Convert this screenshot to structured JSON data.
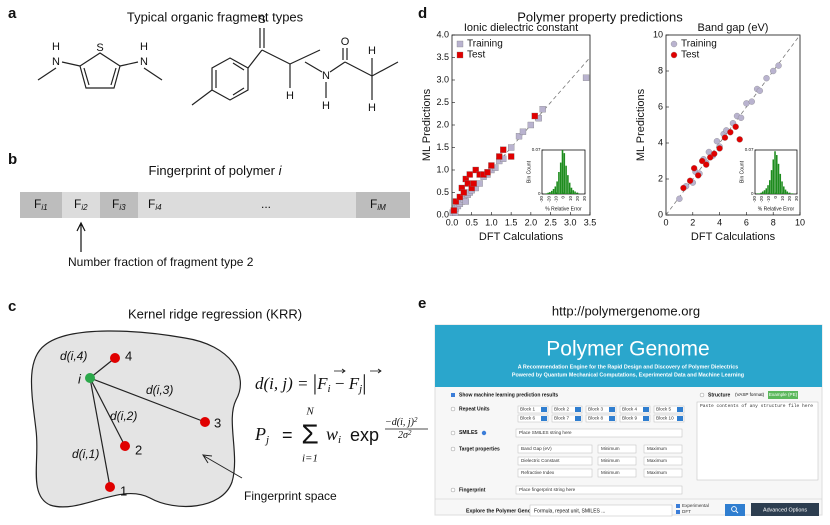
{
  "figure": {
    "a": {
      "label": "a",
      "title": "Typical organic fragment types",
      "atoms": [
        "H",
        "N",
        "S",
        "H",
        "N",
        "S",
        "H",
        "O",
        "N",
        "H",
        "H",
        "H"
      ]
    },
    "b": {
      "label": "b",
      "title": "Fingerprint of polymer ",
      "title_var": "i",
      "cells": [
        {
          "main": "F",
          "sub": "i1"
        },
        {
          "main": "F",
          "sub": "i2"
        },
        {
          "main": "F",
          "sub": "i3"
        },
        {
          "main": "F",
          "sub": "i4"
        },
        {
          "main": "..."
        },
        {
          "main": "F",
          "sub": "iM"
        }
      ],
      "annotation": "Number fraction of fragment type 2"
    },
    "c": {
      "label": "c",
      "title": "Kernel ridge regression (KRR)",
      "node_labels": [
        "i",
        "1",
        "2",
        "3",
        "4"
      ],
      "edge_labels": [
        "d(i,1)",
        "d(i,2)",
        "d(i,3)",
        "d(i,4)"
      ],
      "annotation": "Fingerprint space",
      "eq1": [
        "d(i, j) = ",
        "|",
        "F",
        "i",
        " − ",
        "F",
        "j",
        "|"
      ],
      "eq2": {
        "lhs": "P",
        "lhs_sub": "j",
        "eq": "=",
        "sum_top": "N",
        "sum": "Σ",
        "sum_bottom": "i=1",
        "w": "w",
        "w_sub": "i",
        "exp": "exp",
        "num": "−d(i, j)",
        "num_sup": "2",
        "den": "2σ",
        "den_sup": "2"
      }
    },
    "d": {
      "label": "d",
      "title": "Polymer property predictions"
    },
    "e": {
      "label": "e",
      "url": "http://polymergenome.org",
      "site_title": "Polymer Genome",
      "tagline1": "A Recommendation Engine for the Rapid Design and Discovery of Polymer Dielectrics",
      "tagline2": "Powered by Quantum Mechanical Computations, Experimental Data and Machine Learning",
      "checkbox": "Show machine learning prediction results",
      "repeat_units": "Repeat Units",
      "blocks": [
        "Block 1",
        "Block 2",
        "Block 3",
        "Block 4",
        "Block 5",
        "Block 6",
        "Block 7",
        "Block 8",
        "Block 9",
        "Block 10"
      ],
      "smiles": "SMILES",
      "smiles_placeholder": "Place SMILES string here",
      "targets_label": "Target properties",
      "targets": [
        "Band Gap (eV)",
        "Dielectric Constant",
        "Refractive Index"
      ],
      "min": "Minimum",
      "max": "Maximum",
      "fingerprint": "Fingerprint",
      "fingerprint_placeholder": "Place fingerprint string here",
      "structure": "Structure",
      "structure_note": "(VASP format)",
      "example": "Example (PE)",
      "structure_placeholder": "Paste contents of any structure file here",
      "explore": "Explore the Polymer Genome",
      "search_placeholder": "Formula, repeat unit, SMILES ...",
      "sources": [
        "Experimental",
        "DFT"
      ],
      "advanced": "Advanced Options"
    }
  },
  "chart_data": [
    {
      "type": "scatter",
      "title": "Ionic dielectric constant",
      "xlabel": "DFT Calculations",
      "ylabel": "ML Predictions",
      "xlim": [
        0,
        3.5
      ],
      "ylim": [
        0,
        4
      ],
      "xticks": [
        {
          "value": 0,
          "label": "0.0"
        },
        {
          "value": 0.5,
          "label": "0.5"
        },
        {
          "value": 1,
          "label": "1.0"
        },
        {
          "value": 1.5,
          "label": "1.5"
        },
        {
          "value": 2,
          "label": "2.0"
        },
        {
          "value": 2.5,
          "label": "2.5"
        },
        {
          "value": 3,
          "label": "3.0"
        },
        {
          "value": 3.5,
          "label": "3.5"
        }
      ],
      "yticks": [
        {
          "value": 0,
          "label": "0.0"
        },
        {
          "value": 0.5,
          "label": "0.5"
        },
        {
          "value": 1,
          "label": "1.0"
        },
        {
          "value": 1.5,
          "label": "1.5"
        },
        {
          "value": 2,
          "label": "2.0"
        },
        {
          "value": 2.5,
          "label": "2.5"
        },
        {
          "value": 3,
          "label": "3.0"
        },
        {
          "value": 3.5,
          "label": "3.5"
        },
        {
          "value": 4,
          "label": "4.0"
        }
      ],
      "diagonal": true,
      "legend": "upper left",
      "series": [
        {
          "name": "Training",
          "color": "#b9b3cf",
          "marker": "square",
          "x": [
            0.02,
            0.05,
            0.08,
            0.1,
            0.15,
            0.2,
            0.25,
            0.3,
            0.35,
            0.4,
            0.45,
            0.5,
            0.6,
            0.7,
            0.8,
            0.9,
            1.0,
            1.1,
            1.2,
            1.3,
            1.5,
            1.7,
            1.8,
            2.0,
            2.2,
            2.3,
            3.4
          ],
          "values": [
            0.05,
            0.1,
            0.05,
            0.15,
            0.2,
            0.25,
            0.3,
            0.35,
            0.3,
            0.45,
            0.5,
            0.55,
            0.6,
            0.7,
            0.85,
            0.9,
            1.0,
            1.05,
            1.2,
            1.25,
            1.5,
            1.75,
            1.85,
            2.0,
            2.15,
            2.35,
            3.05
          ]
        },
        {
          "name": "Test",
          "color": "#e00000",
          "marker": "square",
          "x": [
            0.05,
            0.1,
            0.2,
            0.25,
            0.3,
            0.35,
            0.4,
            0.45,
            0.5,
            0.55,
            0.6,
            0.7,
            0.8,
            0.9,
            1.0,
            1.2,
            1.3,
            1.5,
            2.1
          ],
          "values": [
            0.1,
            0.3,
            0.4,
            0.6,
            0.5,
            0.8,
            0.7,
            0.9,
            0.6,
            0.7,
            1.0,
            0.9,
            0.9,
            0.95,
            1.1,
            1.3,
            1.45,
            1.3,
            2.2
          ]
        }
      ]
    },
    {
      "type": "scatter",
      "title": "Band gap (eV)",
      "xlabel": "DFT Calculations",
      "ylabel": "ML Predictions",
      "xlim": [
        0,
        10
      ],
      "ylim": [
        0,
        10
      ],
      "xticks": [
        0,
        2,
        4,
        6,
        8,
        10
      ],
      "yticks": [
        0,
        2,
        4,
        6,
        8,
        10
      ],
      "diagonal": true,
      "legend": "upper left",
      "series": [
        {
          "name": "Training",
          "color": "#b9b3cf",
          "marker": "circle",
          "x": [
            1,
            1.5,
            2,
            2.2,
            2.5,
            2.8,
            3,
            3.2,
            3.5,
            3.8,
            4,
            4.3,
            4.5,
            5,
            5.3,
            5.6,
            6,
            6.4,
            6.8,
            7,
            7.5,
            8,
            8.4
          ],
          "values": [
            0.9,
            1.6,
            1.8,
            2.4,
            2.3,
            3.1,
            2.9,
            3.5,
            3.3,
            4.1,
            3.8,
            4.5,
            4.7,
            5.1,
            5.5,
            5.4,
            6.2,
            6.3,
            7,
            6.9,
            7.6,
            8,
            8.3
          ]
        },
        {
          "name": "Test",
          "color": "#e00000",
          "marker": "circle",
          "x": [
            1.3,
            1.8,
            2.1,
            2.4,
            2.7,
            3,
            3.3,
            3.6,
            4,
            4.4,
            4.8,
            5.2,
            5.5
          ],
          "values": [
            1.5,
            1.9,
            2.6,
            2.2,
            3.0,
            2.8,
            3.2,
            3.4,
            3.7,
            4.3,
            4.6,
            4.9,
            4.2
          ]
        }
      ]
    },
    {
      "type": "histogram",
      "xlabel": "% Relative Error",
      "ylabel": "Bin Count",
      "color": "#1d8c1d",
      "xlim": [
        -30,
        30
      ],
      "ylim": [
        0,
        0.07
      ],
      "xticks": [
        -30,
        -20,
        -10,
        0,
        10,
        20,
        30
      ],
      "yticks": [
        0,
        0.07
      ],
      "bins": [
        -30,
        -27.5,
        -25,
        -22.5,
        -20,
        -17.5,
        -15,
        -12.5,
        -10,
        -7.5,
        -5,
        -2.5,
        0,
        2.5,
        5,
        7.5,
        10,
        12.5,
        15,
        17.5,
        20,
        22.5,
        25,
        27.5,
        30
      ],
      "values": [
        0,
        0,
        0.001,
        0.002,
        0.003,
        0.005,
        0.008,
        0.012,
        0.02,
        0.035,
        0.05,
        0.07,
        0.065,
        0.045,
        0.03,
        0.018,
        0.01,
        0.006,
        0.004,
        0.002,
        0.001,
        0,
        0,
        0
      ]
    },
    {
      "type": "histogram",
      "xlabel": "% Relative Error",
      "ylabel": "Bin Count",
      "color": "#1d8c1d",
      "xlim": [
        -30,
        30
      ],
      "ylim": [
        0,
        0.07
      ],
      "xticks": [
        -30,
        -20,
        -10,
        0,
        10,
        20,
        30
      ],
      "yticks": [
        0,
        0.07
      ],
      "bins": [
        -30,
        -27.5,
        -25,
        -22.5,
        -20,
        -17.5,
        -15,
        -12.5,
        -10,
        -7.5,
        -5,
        -2.5,
        0,
        2.5,
        5,
        7.5,
        10,
        12.5,
        15,
        17.5,
        20,
        22.5,
        25,
        27.5,
        30
      ],
      "values": [
        0,
        0.001,
        0.001,
        0.002,
        0.004,
        0.006,
        0.009,
        0.014,
        0.022,
        0.038,
        0.055,
        0.068,
        0.062,
        0.048,
        0.032,
        0.02,
        0.012,
        0.007,
        0.004,
        0.002,
        0.001,
        0.001,
        0,
        0
      ]
    }
  ]
}
